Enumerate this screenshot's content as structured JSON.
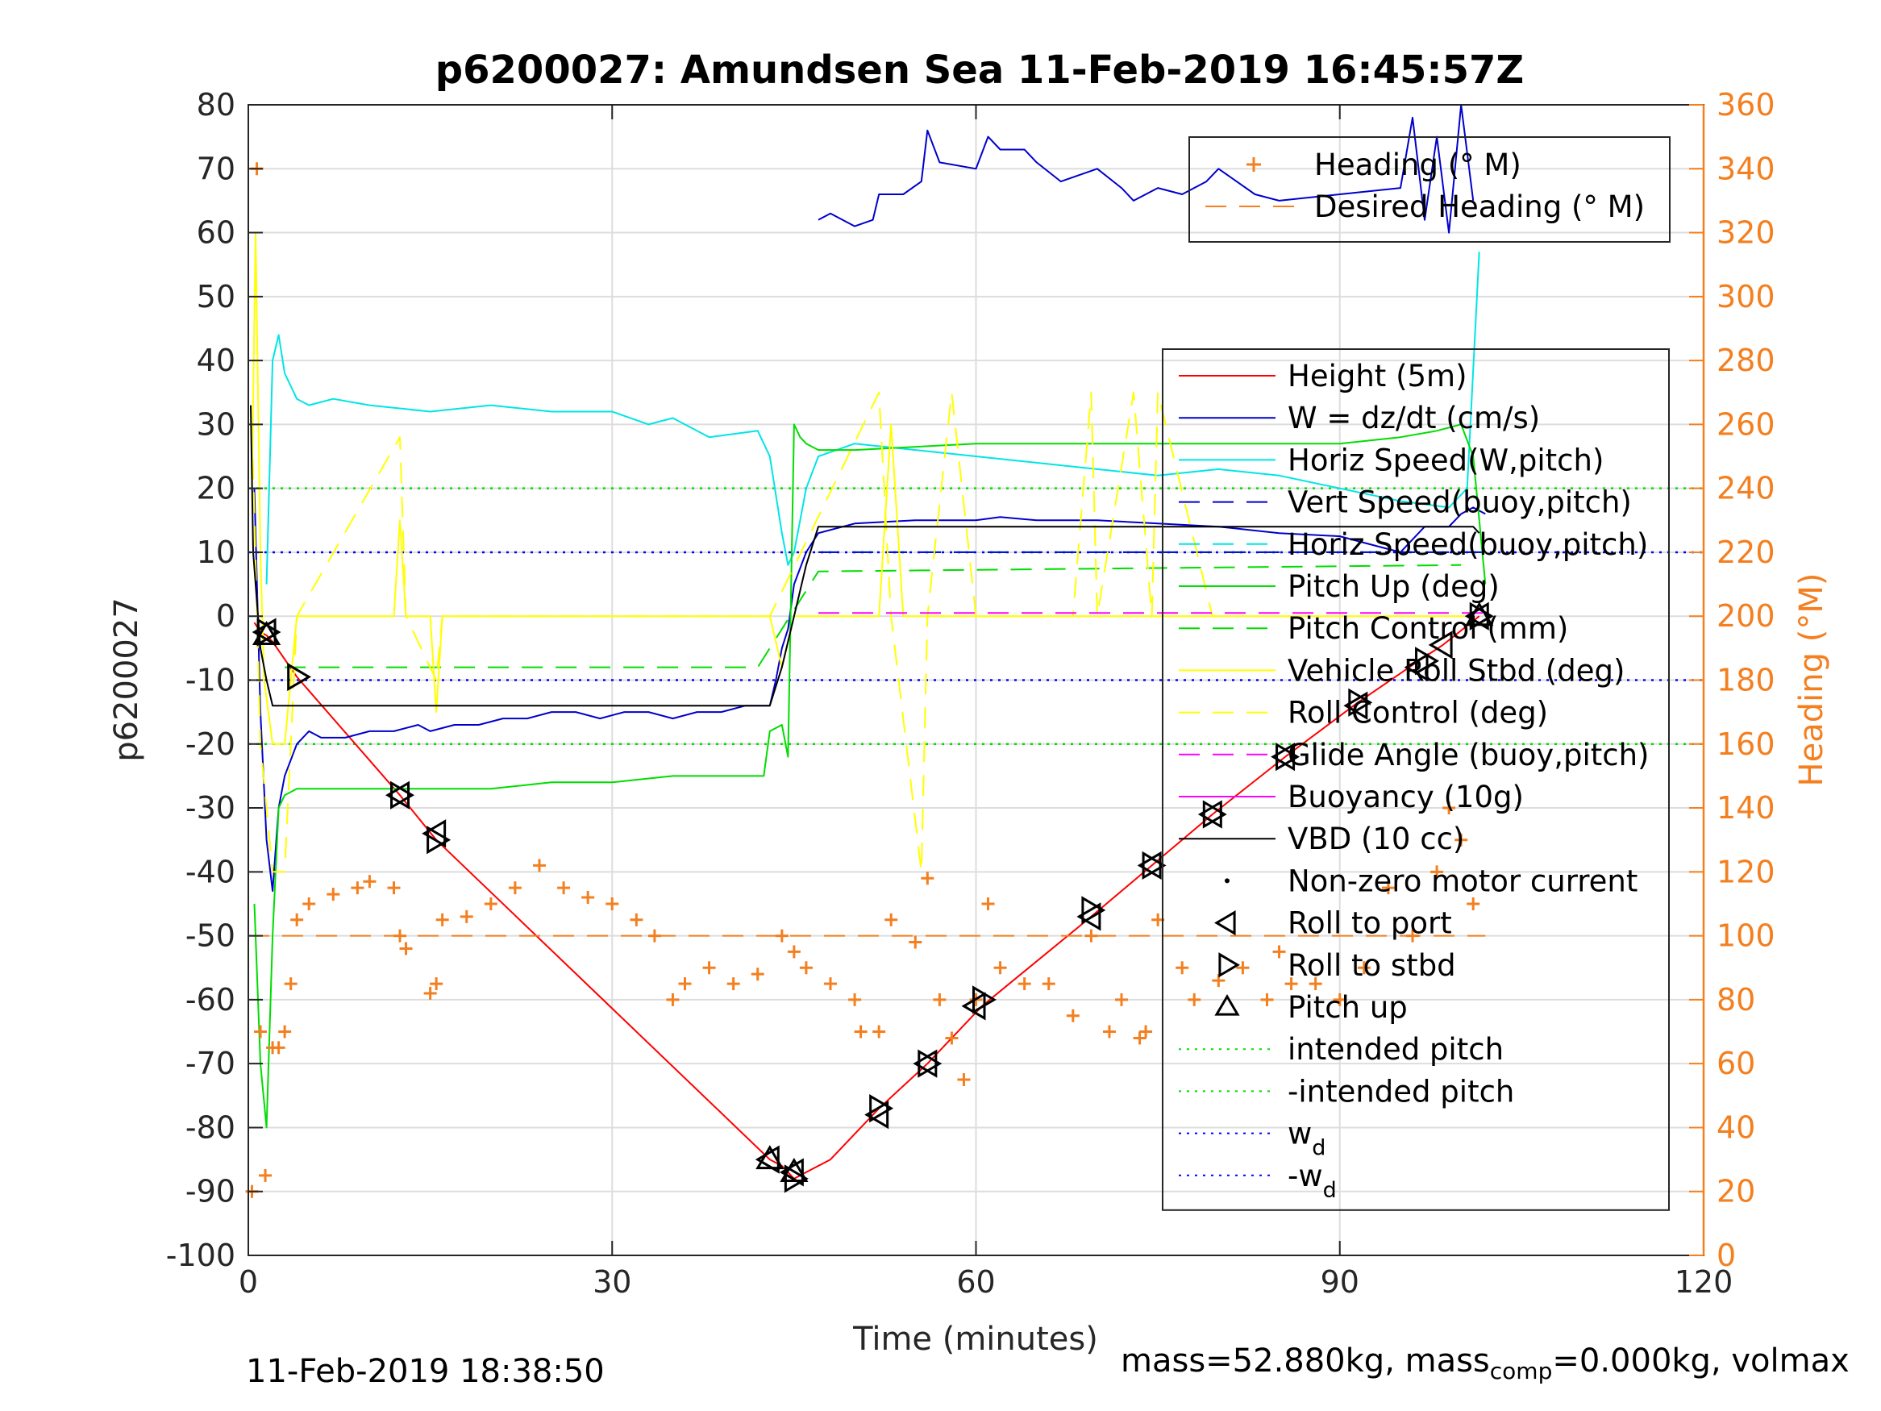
{
  "chart_data": {
    "type": "line",
    "title": "p6200027: Amundsen Sea 11-Feb-2019 16:45:57Z",
    "xlabel": "Time (minutes)",
    "ylabel_left": "p6200027",
    "ylabel_right": "Heading (°M)",
    "xlim": [
      0,
      120
    ],
    "ylim_left": [
      -100,
      80
    ],
    "ylim_right": [
      0,
      360
    ],
    "xticks": [
      0,
      30,
      60,
      90,
      120
    ],
    "xtick_labels": [
      "0",
      "30",
      "60",
      "90",
      "120"
    ],
    "yticks_left": [
      -100,
      -90,
      -80,
      -70,
      -60,
      -50,
      -40,
      -30,
      -20,
      -10,
      0,
      10,
      20,
      30,
      40,
      50,
      60,
      70,
      80
    ],
    "ytick_labels_left": [
      "-100",
      "-90",
      "-80",
      "-70",
      "-60",
      "-50",
      "-40",
      "-30",
      "-20",
      "-10",
      "0",
      "10",
      "20",
      "30",
      "40",
      "50",
      "60",
      "70",
      "80"
    ],
    "yticks_right": [
      0,
      20,
      40,
      60,
      80,
      100,
      120,
      140,
      160,
      180,
      200,
      220,
      240,
      260,
      280,
      300,
      320,
      340,
      360
    ],
    "ytick_labels_right": [
      "0",
      "20",
      "40",
      "60",
      "80",
      "100",
      "120",
      "140",
      "160",
      "180",
      "200",
      "220",
      "240",
      "260",
      "280",
      "300",
      "320",
      "340",
      "360"
    ],
    "grid": true,
    "legend_right_axis": {
      "placement": "top-right",
      "entries": [
        {
          "label": "Heading (° M)",
          "color": "#F47F1F",
          "style": "plus"
        },
        {
          "label": "Desired Heading (° M)",
          "color": "#F47F1F",
          "style": "dashed"
        }
      ]
    },
    "legend_left_axis": {
      "placement": "right",
      "entries": [
        {
          "label": "Height (5m)",
          "color": "#FF0000",
          "style": "solid"
        },
        {
          "label": "W = dz/dt (cm/s)",
          "color": "#0000CC",
          "style": "solid"
        },
        {
          "label": "Horiz Speed(W,pitch)",
          "color": "#00E5E5",
          "style": "solid"
        },
        {
          "label": "Vert Speed(buoy,pitch)",
          "color": "#0000CC",
          "style": "dashed"
        },
        {
          "label": "Horiz Speed(buoy,pitch)",
          "color": "#00E5E5",
          "style": "dashed"
        },
        {
          "label": "Pitch Up (deg)",
          "color": "#00DD00",
          "style": "solid"
        },
        {
          "label": "Pitch Control (mm)",
          "color": "#00DD00",
          "style": "dashed"
        },
        {
          "label": "Vehicle Roll Stbd (deg)",
          "color": "#FFFF00",
          "style": "solid"
        },
        {
          "label": "Roll Control (deg)",
          "color": "#FFFF00",
          "style": "dashed"
        },
        {
          "label": "Glide Angle (buoy,pitch)",
          "color": "#FF00FF",
          "style": "dashed"
        },
        {
          "label": "Buoyancy (10g)",
          "color": "#FF00FF",
          "style": "solid"
        },
        {
          "label": "VBD (10 cc)",
          "color": "#000000",
          "style": "solid"
        },
        {
          "label": "Non-zero motor current",
          "color": "#000000",
          "style": "dot"
        },
        {
          "label": "Roll to port",
          "color": "#000000",
          "style": "tri-left"
        },
        {
          "label": "Roll to stbd",
          "color": "#000000",
          "style": "tri-right"
        },
        {
          "label": "Pitch up",
          "color": "#000000",
          "style": "tri-up"
        },
        {
          "label": "intended pitch",
          "color": "#00DD00",
          "style": "dotted"
        },
        {
          "label": "-intended pitch",
          "color": "#00DD00",
          "style": "dotted"
        },
        {
          "label": "w",
          "sub": "d",
          "color": "#0000FF",
          "style": "dotted"
        },
        {
          "label": "-w",
          "sub": "d",
          "color": "#0000FF",
          "style": "dotted"
        }
      ]
    },
    "reference_lines": {
      "intended_pitch": 20,
      "neg_intended_pitch": -20,
      "w_d": 10,
      "neg_w_d": -10,
      "desired_heading": 100
    },
    "series": [
      {
        "name": "Height (5m)",
        "axis": "left",
        "color": "#FF0000",
        "style": "solid",
        "x": [
          0.5,
          1,
          1.5,
          2,
          4,
          12.5,
          15.5,
          43,
          44,
          45,
          46,
          48,
          52,
          56,
          60.5,
          69.5,
          74.5,
          79.5,
          85.5,
          91.5,
          96.5,
          98.5,
          101.5
        ],
        "y": [
          -1,
          -2.5,
          -3,
          -4,
          -9.5,
          -28,
          -35,
          -85,
          -86,
          -88,
          -87,
          -85,
          -77,
          -70,
          -61,
          -47,
          -39,
          -31,
          -22,
          -13.5,
          -7,
          -4.5,
          0
        ]
      },
      {
        "name": "W = dz/dt (cm/s)",
        "axis": "left",
        "color": "#0000CC",
        "style": "solid",
        "x": [
          0.5,
          1,
          1.5,
          2,
          2.5,
          3,
          4,
          5,
          6,
          8,
          10,
          12,
          14,
          15,
          17,
          19,
          21,
          23,
          25,
          27,
          29,
          31,
          33,
          35,
          37,
          39,
          41,
          43,
          43.5,
          44,
          44.5,
          45,
          46,
          47,
          50,
          55,
          60,
          62,
          65,
          70,
          75,
          80,
          85,
          90,
          92,
          94,
          95,
          96,
          97,
          99,
          100,
          101,
          102
        ],
        "y": [
          20,
          -15,
          -35,
          -43,
          -30,
          -25,
          -20,
          -18,
          -19,
          -19,
          -18,
          -18,
          -17,
          -18,
          -17,
          -17,
          -16,
          -16,
          -15,
          -15,
          -16,
          -15,
          -15,
          -16,
          -15,
          -15,
          -14,
          -14,
          -10,
          -5,
          -2,
          5,
          10,
          13,
          14.5,
          15,
          15,
          15.5,
          15,
          15,
          14.5,
          14,
          13,
          12.5,
          11.5,
          10.5,
          10,
          12,
          14,
          14,
          16,
          17,
          16
        ]
      },
      {
        "name": "W = dz/dt (cm/s)",
        "axis": "left",
        "color": "#0000CC",
        "style": "solid",
        "x": [
          47,
          48,
          50,
          51.5,
          52,
          54,
          55.5,
          56,
          57,
          60,
          61,
          62,
          64,
          65,
          67,
          70,
          72,
          73,
          75,
          77,
          79,
          80,
          83,
          85,
          90,
          95,
          96,
          97,
          98,
          99,
          100,
          101
        ],
        "y": [
          62,
          63,
          61,
          62,
          66,
          66,
          68,
          76,
          71,
          70,
          75,
          73,
          73,
          71,
          68,
          70,
          67,
          65,
          67,
          66,
          68,
          70,
          66,
          65,
          66,
          67,
          78,
          62,
          75,
          60,
          80,
          65
        ]
      },
      {
        "name": "Horiz Speed(W,pitch)",
        "axis": "left",
        "color": "#00E5E5",
        "style": "solid",
        "x": [
          1.5,
          2,
          2.5,
          3,
          4,
          5,
          7,
          10,
          15,
          20,
          25,
          30,
          33,
          35,
          38,
          42,
          43,
          44,
          44.5,
          45,
          46,
          47,
          50,
          60,
          70,
          75,
          80,
          85,
          90,
          95,
          99,
          100.5,
          101.5
        ],
        "y": [
          5,
          40,
          44,
          38,
          34,
          33,
          34,
          33,
          32,
          33,
          32,
          32,
          30,
          31,
          28,
          29,
          25,
          13,
          8,
          10,
          20,
          25,
          27,
          25,
          23,
          22,
          23,
          22,
          20,
          18,
          17,
          20,
          57
        ]
      },
      {
        "name": "Horiz Speed(buoy,pitch)",
        "axis": "left",
        "color": "#00E5E5",
        "style": "dashed",
        "x": [
          47,
          102
        ],
        "y": [
          10,
          10
        ]
      },
      {
        "name": "Vert Speed(buoy,pitch)",
        "axis": "left",
        "color": "#0000CC",
        "style": "dashed",
        "x": [
          47,
          102
        ],
        "y": [
          10,
          10
        ]
      },
      {
        "name": "Pitch Up (deg)",
        "axis": "left",
        "color": "#00DD00",
        "style": "solid",
        "x": [
          0.5,
          1,
          1.5,
          2,
          2.5,
          3,
          4,
          6,
          10,
          15,
          20,
          25,
          30,
          35,
          40,
          42.5,
          43,
          44,
          44.5,
          45,
          45.5,
          46,
          47,
          50,
          60,
          70,
          80,
          90,
          95,
          98,
          100,
          101,
          102
        ],
        "y": [
          -45,
          -70,
          -80,
          -50,
          -30,
          -28,
          -27,
          -27,
          -27,
          -27,
          -27,
          -26,
          -26,
          -25,
          -25,
          -25,
          -18,
          -17,
          -22,
          30,
          28,
          27,
          26,
          26,
          27,
          27,
          27,
          27,
          28,
          29,
          30,
          25,
          5
        ]
      },
      {
        "name": "Pitch Control (mm)",
        "axis": "left",
        "color": "#00DD00",
        "style": "dashed",
        "x": [
          3,
          42,
          47,
          100
        ],
        "y": [
          -8,
          -8,
          7,
          8
        ]
      },
      {
        "name": "Vehicle Roll Stbd (deg)",
        "axis": "left",
        "color": "#FFFF00",
        "style": "solid",
        "x": [
          0.3,
          0.6,
          1,
          1.3,
          2,
          3,
          4,
          12,
          12.5,
          13,
          15,
          15.5,
          16,
          40,
          43,
          44,
          45,
          47,
          52,
          53,
          54,
          56,
          60,
          70,
          85,
          100,
          101
        ],
        "y": [
          20,
          60,
          10,
          -10,
          -20,
          -20,
          0,
          0,
          15,
          0,
          0,
          -15,
          0,
          0,
          0,
          -8,
          0,
          0,
          0,
          30,
          0,
          0,
          0,
          0,
          0,
          0,
          0
        ]
      },
      {
        "name": "Roll Control (deg)",
        "axis": "left",
        "color": "#FFFF00",
        "style": "dashed",
        "x": [
          0.3,
          1,
          2,
          3,
          4,
          12.5,
          13,
          15.5,
          16,
          42,
          43,
          52,
          53,
          55.5,
          56,
          58,
          60,
          68,
          69.5,
          70,
          73,
          74.5,
          75,
          79.5,
          80
        ],
        "y": [
          30,
          -20,
          -40,
          -40,
          0,
          28,
          0,
          -10,
          0,
          0,
          0,
          35,
          0,
          -40,
          0,
          35,
          0,
          0,
          35,
          0,
          35,
          0,
          35,
          0,
          0
        ]
      },
      {
        "name": "Glide Angle (buoy,pitch)",
        "axis": "left",
        "color": "#FF00FF",
        "style": "dashed",
        "x": [
          47,
          102
        ],
        "y": [
          0.5,
          0.5
        ]
      },
      {
        "name": "VBD (10 cc)",
        "axis": "left",
        "color": "#000000",
        "style": "solid",
        "x": [
          0.2,
          0.4,
          1,
          1.5,
          2,
          43,
          44,
          45,
          46,
          47,
          50,
          101,
          101.5
        ],
        "y": [
          33,
          10,
          -5,
          -10,
          -14,
          -14,
          -8,
          0,
          8,
          14,
          14,
          14,
          13
        ]
      },
      {
        "name": "Heading (° M)",
        "axis": "right",
        "color": "#F47F1F",
        "style": "plus",
        "x": [
          0.3,
          0.7,
          1,
          1.4,
          2,
          2.5,
          3,
          3.5,
          4,
          5,
          7,
          9,
          10,
          12,
          12.5,
          13,
          15,
          15.5,
          16,
          18,
          20,
          22,
          24,
          26,
          28,
          30,
          32,
          33.5,
          35,
          36,
          38,
          40,
          42,
          44,
          45,
          46,
          48,
          50,
          50.5,
          52,
          53,
          55,
          56,
          57,
          58,
          59,
          60,
          61,
          62,
          64,
          66,
          68,
          69.5,
          71,
          72,
          73.5,
          74,
          75,
          77,
          78,
          80,
          82,
          84,
          85,
          86,
          88,
          90,
          92,
          94,
          96,
          98,
          99,
          100,
          101
        ],
        "y": [
          20,
          340,
          70,
          25,
          65,
          65,
          70,
          85,
          105,
          110,
          113,
          115,
          117,
          115,
          100,
          96,
          82,
          85,
          105,
          106,
          110,
          115,
          122,
          115,
          112,
          110,
          105,
          100,
          80,
          85,
          90,
          85,
          88,
          100,
          95,
          90,
          85,
          80,
          70,
          70,
          105,
          98,
          118,
          80,
          68,
          55,
          80,
          110,
          90,
          85,
          85,
          75,
          100,
          70,
          80,
          68,
          70,
          105,
          90,
          80,
          86,
          90,
          80,
          95,
          85,
          85,
          80,
          90,
          115,
          100,
          120,
          140,
          130,
          110
        ]
      },
      {
        "name": "Desired Heading (° M)",
        "axis": "right",
        "color": "#F47F1F",
        "style": "dashed",
        "x": [
          0,
          102
        ],
        "y": [
          100,
          100
        ]
      }
    ],
    "markers": {
      "roll_to_port": {
        "x": [
          1.5,
          12.5,
          15.5,
          43,
          45,
          52,
          56,
          60,
          69.5,
          74.5,
          79.5,
          85.5,
          91.5,
          96.5,
          98.5,
          101.5
        ],
        "y": [
          -2.5,
          -28,
          -34,
          -85,
          -87,
          -78,
          -70,
          -61,
          -47,
          -39,
          -31,
          -22,
          -14,
          -8,
          -4.5,
          0
        ]
      },
      "roll_to_stbd": {
        "x": [
          1.5,
          4,
          12.5,
          15.5,
          45,
          52,
          56,
          60.5,
          69.5,
          74.5,
          79.5,
          85.5,
          91.5,
          97,
          101.5
        ],
        "y": [
          -2.5,
          -9.5,
          -28,
          -35,
          -88,
          -77,
          -70,
          -60,
          -46,
          -39,
          -31,
          -22,
          -13.5,
          -7,
          0
        ]
      },
      "pitch_up": {
        "x": [
          1.5,
          43,
          45,
          101.5
        ],
        "y": [
          -3,
          -85,
          -87,
          0
        ]
      }
    }
  },
  "footer": {
    "date": "11-Feb-2019 18:38:50",
    "mass_prefix": "mass=52.880kg, mass",
    "mass_sub": "comp",
    "mass_suffix": "=0.000kg, volmax"
  }
}
